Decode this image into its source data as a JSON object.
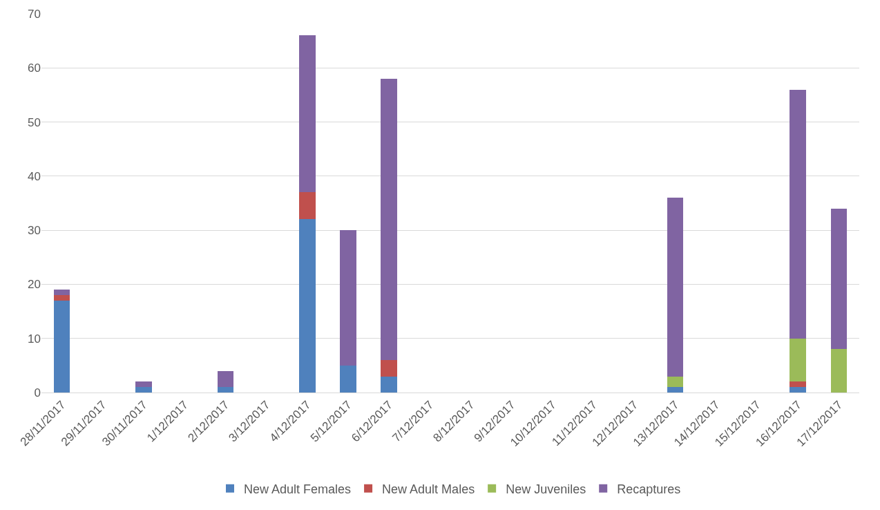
{
  "chart_data": {
    "type": "bar",
    "stacked": true,
    "categories": [
      "28/11/2017",
      "29/11/2017",
      "30/11/2017",
      "1/12/2017",
      "2/12/2017",
      "3/12/2017",
      "4/12/2017",
      "5/12/2017",
      "6/12/2017",
      "7/12/2017",
      "8/12/2017",
      "9/12/2017",
      "10/12/2017",
      "11/12/2017",
      "12/12/2017",
      "13/12/2017",
      "14/12/2017",
      "15/12/2017",
      "16/12/2017",
      "17/12/2017"
    ],
    "series": [
      {
        "name": "New Adult Females",
        "color": "#4f81bd",
        "values": [
          17,
          0,
          1,
          0,
          1,
          0,
          32,
          5,
          3,
          0,
          0,
          0,
          0,
          0,
          0,
          1,
          0,
          0,
          1,
          0
        ]
      },
      {
        "name": "New Adult Males",
        "color": "#c0504d",
        "values": [
          1,
          0,
          0,
          0,
          0,
          0,
          5,
          0,
          3,
          0,
          0,
          0,
          0,
          0,
          0,
          0,
          0,
          0,
          1,
          0
        ]
      },
      {
        "name": "New Juveniles",
        "color": "#9bbb59",
        "values": [
          0,
          0,
          0,
          0,
          0,
          0,
          0,
          0,
          0,
          0,
          0,
          0,
          0,
          0,
          0,
          2,
          0,
          0,
          8,
          8
        ]
      },
      {
        "name": "Recaptures",
        "color": "#8064a2",
        "values": [
          1,
          0,
          1,
          0,
          3,
          0,
          29,
          25,
          52,
          0,
          0,
          0,
          0,
          0,
          0,
          33,
          0,
          0,
          46,
          26
        ]
      }
    ],
    "ylim": [
      0,
      70
    ],
    "yticks": [
      0,
      10,
      20,
      30,
      40,
      50,
      60,
      70
    ],
    "grid": "y",
    "legend": "bottom"
  }
}
